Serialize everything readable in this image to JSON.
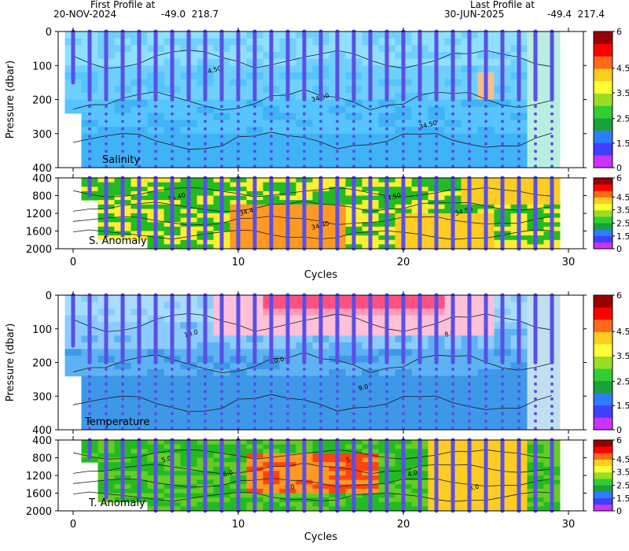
{
  "header": {
    "first_label": "First Profile at",
    "first_date": "20-NOV-2024",
    "first_coords": "-49.0  218.7",
    "last_label": "Last Profile at",
    "last_date": "30-JUN-2025",
    "last_coords": "-49.4  217.4"
  },
  "chart_data": [
    {
      "type": "heatmap",
      "panel": "salinity",
      "label": "Salinity",
      "ylabel": "Pressure (dbar)",
      "ylim": [
        400,
        0
      ],
      "yticks": [
        0,
        100,
        200,
        300,
        400
      ],
      "xlim": [
        -1,
        31
      ],
      "contour_labels": [
        "34.50",
        "34.50",
        "34.50"
      ],
      "colorbar": {
        "ticks": [
          0,
          1.5,
          2.5,
          3.5,
          4.5,
          6
        ],
        "labels": [
          "0",
          "1.5",
          "2.5",
          "3.5",
          "4.5",
          "6"
        ]
      }
    },
    {
      "type": "heatmap",
      "panel": "salinity_anomaly",
      "label": "S. Anomaly",
      "ylim": [
        2000,
        400
      ],
      "yticks": [
        400,
        800,
        1200,
        1600,
        2000
      ],
      "xlim": [
        -1,
        31
      ],
      "xticks": [
        0,
        10,
        20,
        30
      ],
      "xlabel": "Cycles",
      "contour_labels": [
        "34.40",
        "34.40",
        "34.40",
        "34.50",
        "34.50"
      ],
      "colorbar": {
        "ticks": [
          0,
          1.5,
          2.5,
          3.5,
          4.5,
          6
        ],
        "labels": [
          "0",
          "1.5",
          "2.5",
          "3.5",
          "4.5",
          "6"
        ]
      }
    },
    {
      "type": "heatmap",
      "panel": "temperature",
      "label": "Temperature",
      "ylabel": "Pressure (dbar)",
      "ylim": [
        400,
        0
      ],
      "yticks": [
        0,
        100,
        200,
        300,
        400
      ],
      "xlim": [
        -1,
        31
      ],
      "contour_labels": [
        "10.0",
        "10.0",
        "9.0",
        "8.0"
      ],
      "colorbar": {
        "ticks": [
          0,
          1.5,
          2.5,
          3.5,
          4.5,
          6
        ],
        "labels": [
          "0",
          "1.5",
          "2.5",
          "3.5",
          "4.5",
          "6"
        ]
      }
    },
    {
      "type": "heatmap",
      "panel": "temperature_anomaly",
      "label": "T. Anomaly",
      "ylim": [
        2000,
        400
      ],
      "yticks": [
        400,
        800,
        1200,
        1600,
        2000
      ],
      "xlim": [
        -1,
        31
      ],
      "xticks": [
        0,
        10,
        20,
        30
      ],
      "xlabel": "Cycles",
      "contour_labels": [
        "5.0",
        "6.0",
        "7.0",
        "5.0",
        "4.0",
        "3.0"
      ],
      "colorbar": {
        "ticks": [
          0,
          1.5,
          2.5,
          3.5,
          4.5,
          6
        ],
        "labels": [
          "0",
          "1.5",
          "2.5",
          "3.5",
          "4.5",
          "6"
        ]
      }
    }
  ],
  "profiles": {
    "cycles": [
      0,
      1,
      2,
      3,
      4,
      5,
      6,
      7,
      8,
      9,
      10,
      11,
      12,
      13,
      14,
      15,
      16,
      17,
      18,
      19,
      20,
      21,
      22,
      23,
      24,
      25,
      26,
      27,
      28,
      29
    ],
    "dense_to_dbar": 200,
    "sampled_to_dbar": 400
  },
  "colors": {
    "background": "#ffffff",
    "marker": "#5a4fe6",
    "contour": "#1a1a1a",
    "colorbar": [
      "#cc33ff",
      "#4040ff",
      "#2d7dff",
      "#1aa03c",
      "#33cc33",
      "#99dd22",
      "#ffff33",
      "#ffcc22",
      "#ff6a1a",
      "#ff0000",
      "#990000"
    ]
  }
}
